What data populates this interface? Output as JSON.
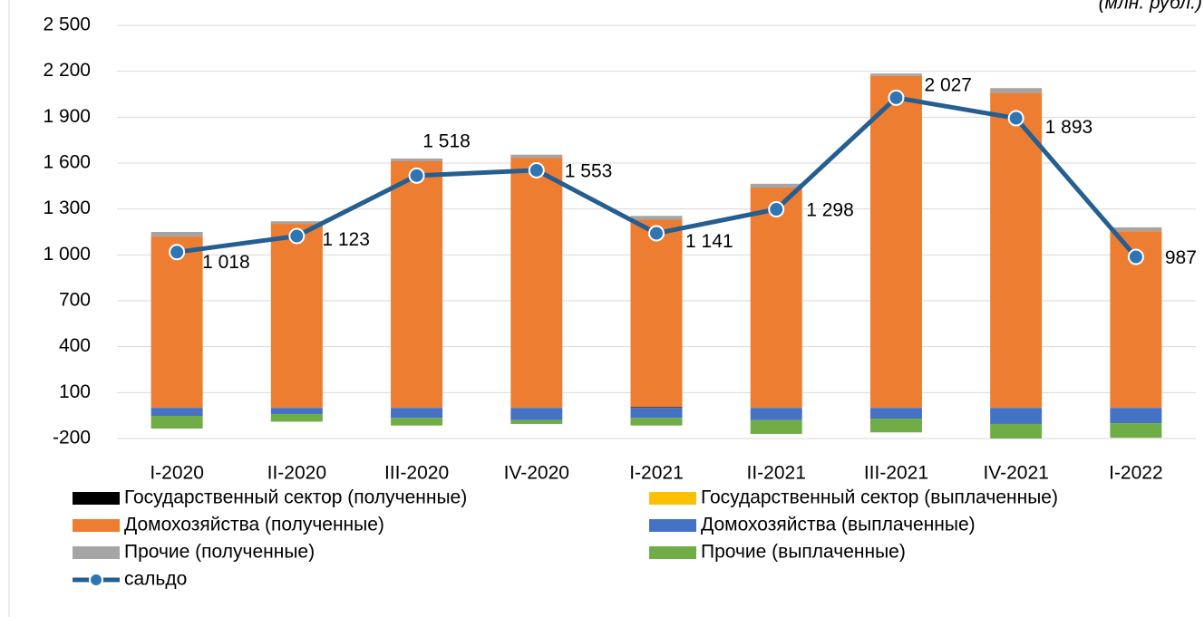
{
  "chart_data": {
    "type": "bar",
    "stacked": true,
    "unit_note": "(млн. рубл.)",
    "categories": [
      "I-2020",
      "II-2020",
      "III-2020",
      "IV-2020",
      "I-2021",
      "II-2021",
      "III-2021",
      "IV-2021",
      "I-2022"
    ],
    "ylim": [
      -200,
      2500
    ],
    "yticks": [
      -200,
      100,
      400,
      700,
      {
        "value": 1000,
        "label": "1 000"
      },
      {
        "value": 1300,
        "label": "1 300"
      },
      {
        "value": 1600,
        "label": "1 600"
      },
      {
        "value": 1900,
        "label": "1 900"
      },
      {
        "value": 2200,
        "label": "2 200"
      },
      {
        "value": 2500,
        "label": "2 500"
      }
    ],
    "grid": true,
    "legend": "bottom",
    "series": [
      {
        "name": "Государственный сектор (полученные)",
        "color": "#000000",
        "values": [
          0,
          0,
          0,
          0,
          5,
          0,
          0,
          0,
          0
        ]
      },
      {
        "name": "Государственный сектор (выплаченные)",
        "color": "#ffc000",
        "values": [
          0,
          0,
          0,
          0,
          0,
          0,
          0,
          0,
          0
        ]
      },
      {
        "name": "Домохозяйства (полученные)",
        "color": "#ed7d31",
        "values": [
          1120,
          1203,
          1612,
          1635,
          1225,
          1440,
          2170,
          2060,
          1155
        ]
      },
      {
        "name": "Домохозяйства (выплаченные)",
        "color": "#4472c4",
        "values": [
          -52,
          -40,
          -65,
          -80,
          -65,
          -80,
          -70,
          -105,
          -100
        ]
      },
      {
        "name": "Прочие (полученные)",
        "color": "#a5a5a5",
        "values": [
          30,
          17,
          18,
          20,
          25,
          25,
          15,
          30,
          25
        ]
      },
      {
        "name": "Прочие (выплаченные)",
        "color": "#70ad47",
        "values": [
          -83,
          -50,
          -50,
          -25,
          -50,
          -90,
          -90,
          -95,
          -95
        ]
      },
      {
        "name": "сальдо",
        "type": "line",
        "color": "#255e91",
        "marker_color": "#2e75b6",
        "values": [
          1018,
          1123,
          1518,
          1553,
          1141,
          1298,
          2027,
          1893,
          987
        ],
        "value_labels": [
          "1 018",
          "1 123",
          "1 518",
          "1 553",
          "1 141",
          "1 298",
          "2 027",
          "1 893",
          "987"
        ]
      }
    ]
  }
}
